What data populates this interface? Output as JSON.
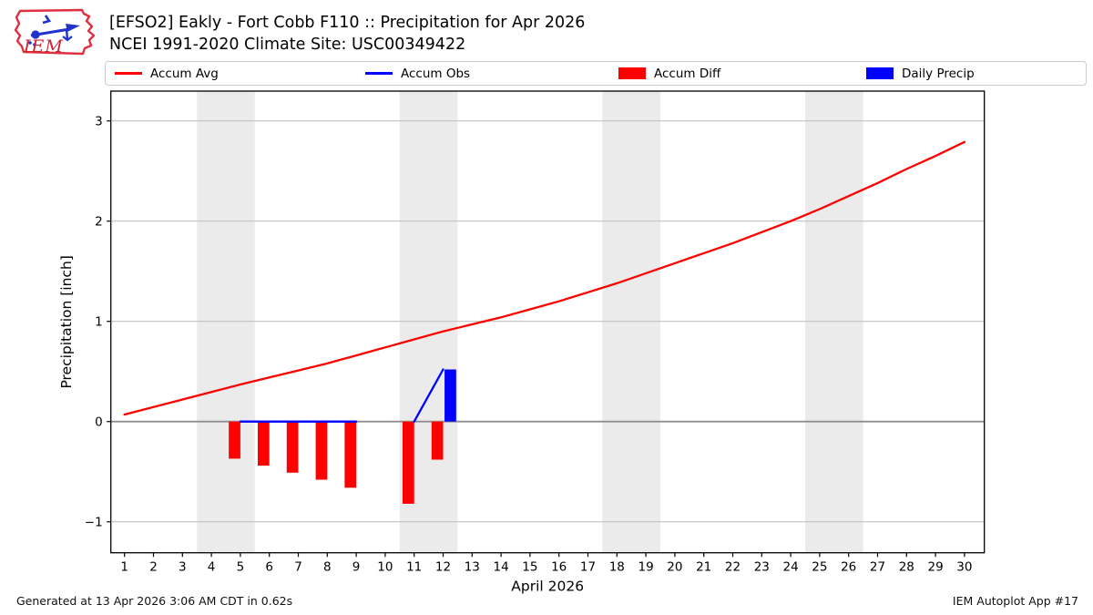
{
  "header": {
    "title_line1": "[EFSO2] Eakly - Fort Cobb F110 :: Precipitation for Apr 2026",
    "title_line2": "NCEI 1991-2020 Climate Site: USC00349422",
    "logo_text": "IEM"
  },
  "legend": {
    "items": [
      {
        "label": "Accum Avg",
        "swatch": "line",
        "color": "#ff0000"
      },
      {
        "label": "Accum Obs",
        "swatch": "line",
        "color": "#0000ff"
      },
      {
        "label": "Accum Diff",
        "swatch": "rect",
        "color": "#ff0000"
      },
      {
        "label": "Daily Precip",
        "swatch": "rect",
        "color": "#0000ff"
      }
    ]
  },
  "chart_data": {
    "type": "line+bar",
    "xlabel": "April 2026",
    "ylabel": "Precipitation [inch]",
    "xlim": [
      0.53,
      30.7
    ],
    "ylim": [
      -1.31,
      3.3
    ],
    "x_ticks": [
      1,
      2,
      3,
      4,
      5,
      6,
      7,
      8,
      9,
      10,
      11,
      12,
      13,
      14,
      15,
      16,
      17,
      18,
      19,
      20,
      21,
      22,
      23,
      24,
      25,
      26,
      27,
      28,
      29,
      30
    ],
    "y_ticks": [
      -1,
      0,
      1,
      2,
      3
    ],
    "grid": true,
    "weekend_bands": [
      [
        3.5,
        5.5
      ],
      [
        10.5,
        12.5
      ],
      [
        17.5,
        19.5
      ],
      [
        24.5,
        26.5
      ]
    ],
    "colors": {
      "accum_avg": "#ff0000",
      "accum_obs": "#0000ff",
      "accum_diff": "#ff0000",
      "daily_precip": "#0000ff",
      "band": "#ebebeb",
      "gridline": "#c3c3c3",
      "zeroline": "#8e8e8e",
      "spine": "#000000"
    },
    "series": [
      {
        "name": "Accum Avg",
        "type": "line",
        "color": "#ff0000",
        "x": [
          1,
          2,
          3,
          4,
          5,
          6,
          7,
          8,
          9,
          10,
          11,
          12,
          13,
          14,
          15,
          16,
          17,
          18,
          19,
          20,
          21,
          22,
          23,
          24,
          25,
          26,
          27,
          28,
          29,
          30
        ],
        "values": [
          0.07,
          0.145,
          0.22,
          0.295,
          0.37,
          0.44,
          0.51,
          0.58,
          0.66,
          0.74,
          0.82,
          0.9,
          0.97,
          1.04,
          1.12,
          1.2,
          1.29,
          1.38,
          1.48,
          1.58,
          1.68,
          1.78,
          1.89,
          2.0,
          2.12,
          2.25,
          2.38,
          2.52,
          2.65,
          2.79
        ]
      },
      {
        "name": "Accum Obs",
        "type": "line",
        "color": "#0000ff",
        "segments": [
          [
            [
              5,
              0
            ],
            [
              6,
              0
            ],
            [
              7,
              0
            ],
            [
              8,
              0
            ],
            [
              9,
              0
            ]
          ],
          [
            [
              11,
              0
            ],
            [
              12,
              0.52
            ]
          ]
        ]
      },
      {
        "name": "Accum Diff",
        "type": "bar",
        "color": "#ff0000",
        "offset": -0.2,
        "bar_width": 0.4,
        "points": [
          [
            5,
            -0.37
          ],
          [
            6,
            -0.44
          ],
          [
            7,
            -0.51
          ],
          [
            8,
            -0.58
          ],
          [
            9,
            -0.66
          ],
          [
            11,
            -0.82
          ],
          [
            12,
            -0.38
          ]
        ]
      },
      {
        "name": "Daily Precip",
        "type": "bar",
        "color": "#0000ff",
        "offset": 0.25,
        "bar_width": 0.4,
        "points": [
          [
            12,
            0.52
          ]
        ]
      }
    ]
  },
  "footer": {
    "left": "Generated at 13 Apr 2026 3:06 AM CDT in 0.62s",
    "right": "IEM Autoplot App #17"
  }
}
